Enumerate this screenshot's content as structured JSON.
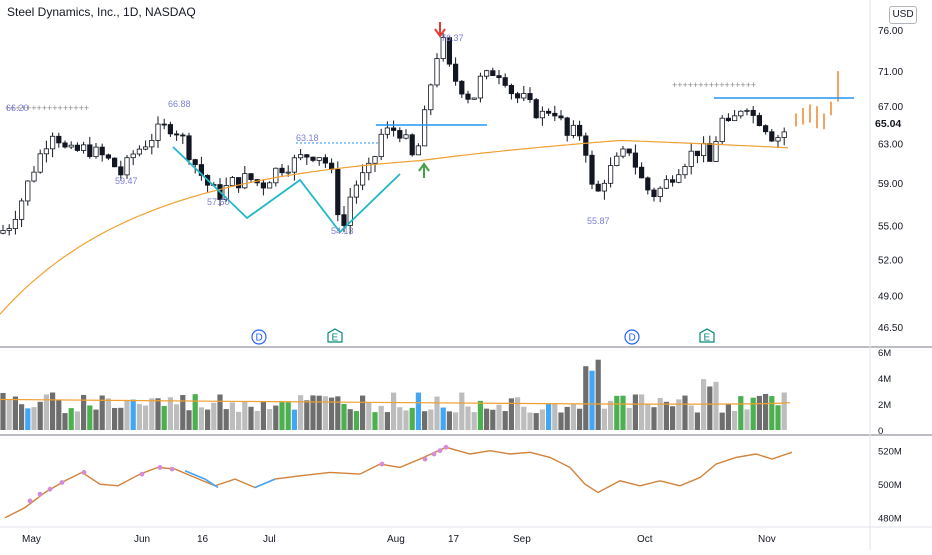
{
  "header": {
    "title": "Steel Dynamics, Inc., 1D, NASDAQ",
    "currency": "USD"
  },
  "colors": {
    "up_candle": "#ffffff",
    "down_candle": "#131722",
    "ma_line": "#f0a030",
    "pattern_line": "#1fb8c8",
    "level_line": "#2196f3",
    "projection": "#f4a460",
    "rs_line": "#d2813a",
    "vol_green": "#4caf50",
    "vol_blue": "#42a5f5",
    "vol_dark": "#6e6e6e",
    "vol_light": "#bdbdbd",
    "label": "#7b7fd4"
  },
  "chart_data": {
    "type": "candlestick",
    "title": "Steel Dynamics, Inc., 1D, NASDAQ",
    "price_axis": {
      "ticks": [
        "76.00",
        "71.00",
        "67.00",
        "63.00",
        "59.00",
        "55.00",
        "52.00",
        "49.00",
        "46.50"
      ],
      "last_price": "65.04",
      "scale": "log"
    },
    "x_axis": {
      "labels": [
        "May",
        "Jun",
        "16",
        "Jul",
        "Aug",
        "17",
        "Sep",
        "Oct",
        "Nov"
      ]
    },
    "annotations": [
      "66.20",
      "66.88",
      "59.47",
      "57.60",
      "63.18",
      "54.13",
      "76.37",
      "55.87"
    ],
    "events": [
      {
        "type": "D",
        "label": "D"
      },
      {
        "type": "E",
        "label": "E"
      },
      {
        "type": "D",
        "label": "D"
      },
      {
        "type": "E",
        "label": "E"
      }
    ],
    "volume_axis": {
      "ticks": [
        "6M",
        "4M",
        "2M",
        "0"
      ]
    },
    "rs_axis": {
      "ticks": [
        "520M",
        "500M",
        "480M"
      ]
    }
  }
}
